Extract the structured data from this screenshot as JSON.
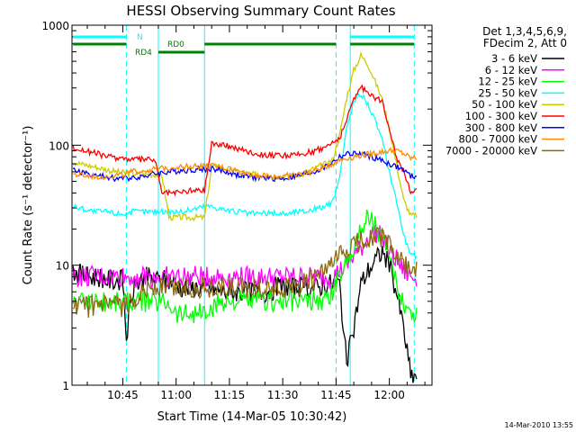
{
  "chart_data": {
    "type": "line",
    "title": "HESSI Observing Summary Count Rates",
    "xlabel": "Start Time (14-Mar-05 10:30:42)",
    "ylabel": "Count Rate (s⁻¹ detector⁻¹)",
    "yscale": "log",
    "ylim": [
      1,
      1000
    ],
    "xlim": [
      "10:30:42",
      "12:12:00"
    ],
    "x_ticks": [
      "10:45",
      "11:00",
      "11:15",
      "11:30",
      "11:45",
      "12:00"
    ],
    "y_ticks": [
      "1",
      "10",
      "100",
      "1000"
    ],
    "grid": false,
    "legend_position": "right",
    "legend_header": [
      "Det 1,3,4,5,6,9,",
      "FDecim 2, Att 0"
    ],
    "timestamp": "14-Mar-2010 13:55",
    "x": [
      "10:31",
      "10:33",
      "10:35",
      "10:37",
      "10:39",
      "10:41",
      "10:43",
      "10:45",
      "10:46",
      "10:48",
      "10:50",
      "10:52",
      "10:54",
      "10:56",
      "10:58",
      "11:00",
      "11:02",
      "11:04",
      "11:06",
      "11:08",
      "11:10",
      "11:12",
      "11:14",
      "11:16",
      "11:18",
      "11:20",
      "11:22",
      "11:24",
      "11:26",
      "11:28",
      "11:30",
      "11:32",
      "11:34",
      "11:36",
      "11:38",
      "11:40",
      "11:42",
      "11:44",
      "11:46",
      "11:48",
      "11:50",
      "11:52",
      "11:54",
      "11:56",
      "11:58",
      "12:00",
      "12:02",
      "12:04",
      "12:06"
    ],
    "series": [
      {
        "name": "3 - 6 keV",
        "color": "#000000",
        "values": [
          9,
          8.5,
          8,
          8,
          8,
          7.5,
          7.5,
          7.5,
          2.5,
          6.5,
          7.5,
          8,
          7.5,
          7.5,
          7.5,
          7,
          6.5,
          6.5,
          6.5,
          6.5,
          6.5,
          6,
          6,
          6,
          6,
          6,
          6,
          6,
          6,
          6.5,
          6.5,
          6.5,
          6.5,
          6.5,
          6.5,
          6.5,
          7,
          7,
          7,
          1.5,
          3,
          7,
          9,
          11,
          13,
          10,
          6,
          3,
          1.2
        ]
      },
      {
        "name": "6 - 12 keV",
        "color": "#ff00ff",
        "values": [
          8,
          8,
          8,
          8,
          8,
          8,
          8,
          8,
          8,
          8,
          8,
          8,
          8,
          8,
          8,
          8,
          8,
          8,
          8,
          8,
          8,
          8,
          8,
          8,
          8,
          8,
          8,
          8,
          8,
          8,
          8,
          8,
          8,
          8,
          8,
          8,
          8,
          8,
          9,
          10,
          12,
          14,
          17,
          19,
          17,
          13,
          11,
          9,
          8
        ]
      },
      {
        "name": "12 - 25 keV",
        "color": "#00ff00",
        "values": [
          5,
          5,
          5,
          5,
          5,
          5,
          5,
          5,
          5,
          5,
          5,
          5,
          5,
          5,
          5,
          4,
          4,
          4,
          4,
          4,
          4,
          5,
          5,
          5,
          5,
          5,
          5,
          5,
          5,
          5,
          5,
          5,
          5,
          5,
          5,
          5,
          5,
          6,
          8,
          11,
          15,
          19,
          27,
          22,
          16,
          11,
          7,
          5,
          4
        ]
      },
      {
        "name": "25 - 50 keV",
        "color": "#00ffff",
        "values": [
          31,
          30,
          29,
          28,
          28,
          28,
          27,
          27,
          27,
          28,
          28,
          28,
          28,
          28,
          28,
          28,
          28,
          29,
          30,
          31,
          31,
          30,
          29,
          28,
          28,
          27,
          27,
          27,
          27,
          27,
          27,
          27,
          28,
          28,
          29,
          30,
          31,
          33,
          55,
          140,
          230,
          270,
          220,
          160,
          110,
          60,
          35,
          18,
          12
        ]
      },
      {
        "name": "50 - 100 keV",
        "color": "#cccc00",
        "values": [
          72,
          70,
          68,
          66,
          64,
          62,
          60,
          59,
          58,
          58,
          57,
          57,
          57,
          57,
          25,
          25,
          25,
          25,
          25,
          25,
          67,
          66,
          64,
          62,
          60,
          58,
          57,
          56,
          55,
          55,
          55,
          56,
          57,
          59,
          62,
          66,
          70,
          75,
          120,
          250,
          420,
          560,
          470,
          340,
          240,
          140,
          70,
          35,
          26
        ]
      },
      {
        "name": "100 - 300 keV",
        "color": "#ff0000",
        "values": [
          95,
          92,
          89,
          86,
          83,
          80,
          79,
          78,
          77,
          76,
          76,
          76,
          76,
          40,
          40,
          40,
          41,
          42,
          42,
          42,
          104,
          102,
          99,
          96,
          93,
          89,
          86,
          84,
          83,
          82,
          82,
          82,
          83,
          85,
          88,
          92,
          97,
          105,
          115,
          160,
          250,
          300,
          280,
          250,
          230,
          140,
          80,
          60,
          42
        ]
      },
      {
        "name": "300 - 800 keV",
        "color": "#0000ff",
        "values": [
          62,
          60,
          58,
          56,
          55,
          54,
          53,
          53,
          53,
          54,
          55,
          56,
          58,
          59,
          60,
          61,
          62,
          62,
          63,
          63,
          64,
          62,
          60,
          58,
          56,
          55,
          54,
          54,
          53,
          53,
          53,
          54,
          55,
          57,
          59,
          62,
          66,
          72,
          80,
          84,
          85,
          84,
          82,
          78,
          74,
          70,
          66,
          62,
          55
        ]
      },
      {
        "name": "800 - 7000 keV",
        "color": "#ff8c00",
        "values": [
          57,
          56,
          55,
          55,
          55,
          55,
          56,
          57,
          58,
          60,
          61,
          62,
          63,
          64,
          65,
          66,
          66,
          67,
          67,
          67,
          67,
          66,
          64,
          62,
          60,
          58,
          57,
          56,
          55,
          55,
          55,
          56,
          57,
          58,
          60,
          63,
          66,
          70,
          75,
          78,
          80,
          82,
          84,
          86,
          88,
          90,
          90,
          85,
          78
        ]
      },
      {
        "name": "7000 - 20000 keV",
        "color": "#8b6914",
        "values": [
          4.5,
          4.5,
          4.5,
          4.5,
          4.5,
          4.5,
          4.5,
          4.5,
          4.5,
          5,
          6,
          6.5,
          6.5,
          6.5,
          6.5,
          6.5,
          6.5,
          6.5,
          6.5,
          6.5,
          6.5,
          6.5,
          6.5,
          6.5,
          6.5,
          6.5,
          6.5,
          6.5,
          6.5,
          6.5,
          6.5,
          6.5,
          6.5,
          7,
          7.5,
          8,
          9,
          10,
          12,
          13,
          15,
          16,
          17,
          18,
          17,
          15,
          12,
          10,
          9
        ]
      }
    ],
    "vlines": [
      {
        "x": "10:46",
        "color": "#00ffff",
        "style": "dashed"
      },
      {
        "x": "10:55",
        "color": "#00ffff",
        "style": "solid"
      },
      {
        "x": "11:08",
        "color": "#00ffff",
        "style": "solid"
      },
      {
        "x": "11:45",
        "color": "#00ffff",
        "style": "dashed"
      },
      {
        "x": "11:49",
        "color": "#00ffff",
        "style": "solid"
      },
      {
        "x": "12:07",
        "color": "#00ffff",
        "style": "dashed"
      }
    ],
    "status_bars": [
      {
        "label": "N",
        "color": "#00ffff",
        "segments": [
          [
            "10:31",
            "10:46"
          ],
          [
            "11:49",
            "12:07"
          ]
        ]
      },
      {
        "label": "RD0",
        "color": "#008000",
        "segments": [
          [
            "10:31",
            "10:46"
          ],
          [
            "11:08",
            "11:45"
          ],
          [
            "11:49",
            "12:07"
          ]
        ]
      },
      {
        "label": "RD4",
        "color": "#008000",
        "segments": [
          [
            "10:55",
            "11:08"
          ]
        ]
      }
    ]
  }
}
